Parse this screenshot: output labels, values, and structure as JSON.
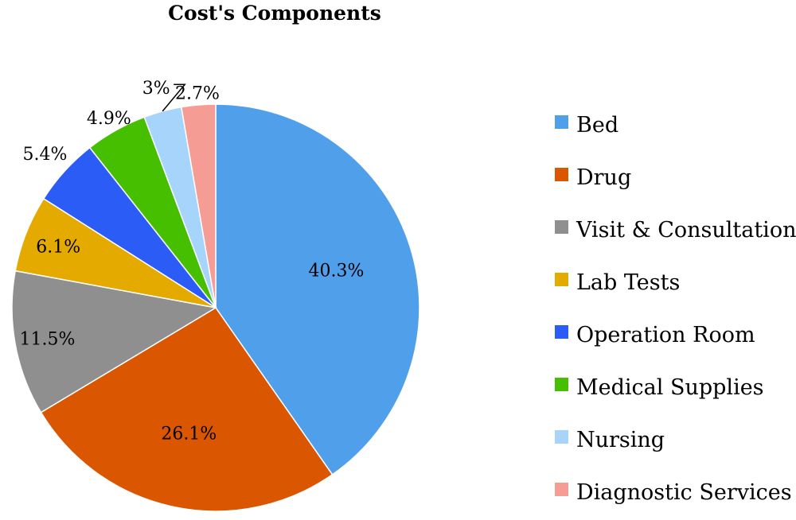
{
  "chart_data": {
    "type": "pie",
    "title": "Cost's Components",
    "legend_position": "right",
    "slices": [
      {
        "label": "Bed",
        "value": 40.3,
        "display": "40.3%",
        "color": "#4f9feb"
      },
      {
        "label": "Drug",
        "value": 26.1,
        "display": "26.1%",
        "color": "#db5600"
      },
      {
        "label": "Visit & Consultation",
        "value": 11.5,
        "display": "11.5%",
        "color": "#8f8f8f"
      },
      {
        "label": "Lab Tests",
        "value": 6.1,
        "display": "6.1%",
        "color": "#e4aa00"
      },
      {
        "label": "Operation Room",
        "value": 5.4,
        "display": "5.4%",
        "color": "#2b5cf5"
      },
      {
        "label": "Medical Supplies",
        "value": 4.9,
        "display": "4.9%",
        "color": "#46bf00"
      },
      {
        "label": "Nursing",
        "value": 3,
        "display": "3%",
        "color": "#a6d4fb"
      },
      {
        "label": "Diagnostic Services",
        "value": 2.7,
        "display": "2.7%",
        "color": "#f59d95"
      }
    ]
  }
}
